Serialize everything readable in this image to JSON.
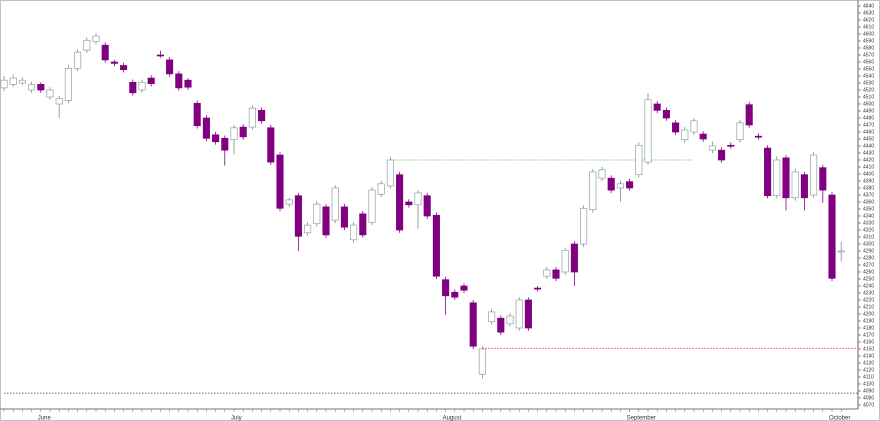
{
  "chart_data": {
    "type": "candlestick",
    "categories": [
      null,
      null,
      null,
      null,
      "June",
      null,
      null,
      null,
      null,
      null,
      null,
      null,
      null,
      null,
      null,
      null,
      null,
      null,
      null,
      null,
      null,
      null,
      null,
      null,
      null,
      "July",
      null,
      null,
      null,
      null,
      null,
      null,
      null,
      null,
      null,
      null,
      null,
      null,
      null,
      null,
      null,
      null,
      null,
      null,
      null,
      null,
      null,
      null,
      "August",
      null,
      null,
      null,
      null,
      null,
      null,
      null,
      null,
      null,
      null,
      null,
      null,
      null,
      null,
      null,
      null,
      null,
      null,
      null,
      "September",
      null,
      null,
      null,
      null,
      null,
      null,
      null,
      null,
      null,
      null,
      null,
      null,
      null,
      null,
      null,
      null,
      null,
      null,
      null,
      null,
      null,
      "October",
      null
    ],
    "open": [
      4523,
      4528,
      4530,
      4520,
      4528,
      4510,
      4500,
      4505,
      4551,
      4577,
      4589,
      4584,
      4560,
      4555,
      4531,
      4520,
      4537,
      4570,
      4563,
      4543,
      4534,
      4501,
      4480,
      4456,
      4451,
      4449,
      4467,
      4467,
      4491,
      4466,
      4427,
      4357,
      4369,
      4316,
      4329,
      4353,
      4334,
      4353,
      4306,
      4343,
      4331,
      4371,
      4383,
      4399,
      4360,
      4356,
      4369,
      4341,
      4249,
      4231,
      4240,
      4216,
      4114,
      4189,
      4194,
      4186,
      4180,
      4220,
      4237,
      4254,
      4263,
      4260,
      4300,
      4300,
      4349,
      4394,
      4394,
      4380,
      4389,
      4399,
      4417,
      4500,
      4491,
      4473,
      4449,
      4460,
      4457,
      4434,
      4434,
      4441,
      4449,
      4499,
      4454,
      4437,
      4369,
      4423,
      4366,
      4399,
      4370,
      4409,
      4370,
      4290
    ],
    "high": [
      4540,
      4542,
      4538,
      4532,
      4531,
      4524,
      4512,
      4556,
      4578,
      4595,
      4601,
      4588,
      4563,
      4559,
      4535,
      4535,
      4541,
      4576,
      4567,
      4547,
      4537,
      4505,
      4484,
      4460,
      4455,
      4470,
      4471,
      4498,
      4495,
      4470,
      4431,
      4366,
      4373,
      4331,
      4361,
      4357,
      4384,
      4357,
      4331,
      4347,
      4381,
      4390,
      4425,
      4403,
      4364,
      4377,
      4373,
      4345,
      4253,
      4235,
      4244,
      4220,
      4154,
      4207,
      4198,
      4201,
      4224,
      4224,
      4240,
      4267,
      4267,
      4295,
      4304,
      4355,
      4407,
      4410,
      4398,
      4390,
      4393,
      4445,
      4515,
      4504,
      4495,
      4477,
      4467,
      4480,
      4461,
      4446,
      4438,
      4445,
      4477,
      4503,
      4458,
      4441,
      4425,
      4427,
      4407,
      4403,
      4432,
      4413,
      4374,
      4303
    ],
    "low": [
      4518,
      4524,
      4527,
      4516,
      4516,
      4506,
      4480,
      4501,
      4547,
      4573,
      4585,
      4559,
      4554,
      4545,
      4512,
      4516,
      4525,
      4566,
      4539,
      4519,
      4520,
      4465,
      4447,
      4442,
      4412,
      4428,
      4449,
      4463,
      4472,
      4413,
      4347,
      4353,
      4290,
      4312,
      4325,
      4309,
      4330,
      4320,
      4302,
      4309,
      4327,
      4367,
      4379,
      4316,
      4352,
      4322,
      4336,
      4250,
      4199,
      4220,
      4230,
      4150,
      4108,
      4185,
      4170,
      4182,
      4176,
      4176,
      4232,
      4250,
      4247,
      4256,
      4240,
      4296,
      4345,
      4390,
      4373,
      4360,
      4376,
      4395,
      4413,
      4487,
      4476,
      4456,
      4445,
      4456,
      4446,
      4430,
      4416,
      4436,
      4445,
      4466,
      4449,
      4365,
      4365,
      4348,
      4362,
      4348,
      4366,
      4359,
      4247,
      4275
    ],
    "close": [
      4534,
      4537,
      4534,
      4528,
      4520,
      4520,
      4508,
      4551,
      4574,
      4591,
      4597,
      4563,
      4558,
      4549,
      4516,
      4531,
      4529,
      4569,
      4543,
      4523,
      4524,
      4469,
      4451,
      4446,
      4434,
      4466,
      4453,
      4494,
      4476,
      4417,
      4351,
      4363,
      4311,
      4327,
      4357,
      4313,
      4380,
      4324,
      4327,
      4313,
      4377,
      4386,
      4420,
      4320,
      4356,
      4373,
      4340,
      4254,
      4226,
      4224,
      4234,
      4154,
      4150,
      4203,
      4174,
      4197,
      4220,
      4180,
      4236,
      4263,
      4251,
      4291,
      4260,
      4351,
      4403,
      4406,
      4377,
      4386,
      4380,
      4441,
      4506,
      4491,
      4480,
      4460,
      4463,
      4476,
      4450,
      4440,
      4420,
      4440,
      4473,
      4470,
      4453,
      4369,
      4420,
      4366,
      4403,
      4366,
      4427,
      4377,
      4251,
      4290
    ],
    "up_color": "#ffffff",
    "up_stroke": "#8fa3a3",
    "down_color": "#800080",
    "wick_color": "#7a8a8a",
    "ylim": [
      4070,
      4640
    ],
    "yticks": [
      4070,
      4080,
      4090,
      4100,
      4110,
      4120,
      4130,
      4140,
      4150,
      4160,
      4170,
      4180,
      4190,
      4200,
      4210,
      4220,
      4230,
      4240,
      4250,
      4260,
      4270,
      4280,
      4290,
      4300,
      4310,
      4320,
      4330,
      4340,
      4350,
      4360,
      4370,
      4380,
      4390,
      4400,
      4410,
      4420,
      4430,
      4440,
      4450,
      4460,
      4470,
      4480,
      4490,
      4500,
      4510,
      4520,
      4530,
      4540,
      4550,
      4560,
      4570,
      4580,
      4590,
      4600,
      4610,
      4620,
      4630,
      4640
    ],
    "hlines": [
      {
        "value": 4420,
        "color": "#33cc33",
        "from": 42,
        "to": 73
      },
      {
        "value": 4151,
        "color": "#e04040",
        "from": 52,
        "to": 91
      },
      {
        "value": 4087,
        "color": "#8b2020",
        "from": 0,
        "to": 91
      }
    ]
  }
}
